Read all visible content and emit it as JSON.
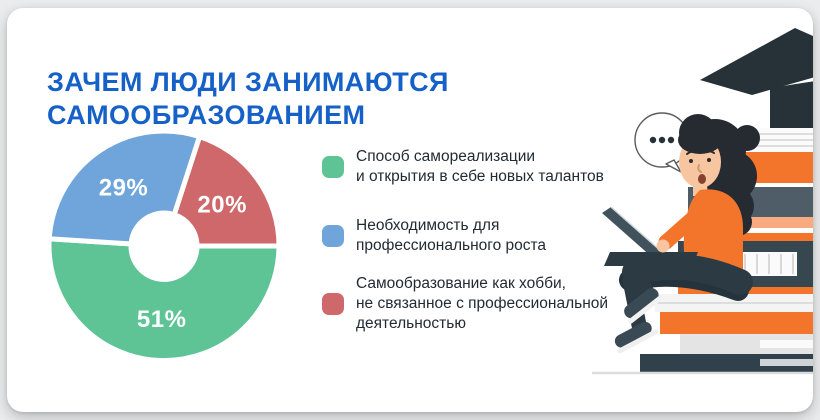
{
  "page": {
    "background": "#ebeced",
    "card_background": "#ffffff"
  },
  "title": {
    "text": "ЗАЧЕМ ЛЮДИ ЗАНИМАЮТСЯ\nСАМООБРАЗОВАНИЕМ",
    "color": "#1561c8"
  },
  "chart_data": {
    "type": "pie",
    "title": "Зачем люди занимаются самообразованием",
    "donut": true,
    "hole_ratio": 0.29,
    "start_angle_cw_from_top_deg": 18,
    "gap_color": "#ffffff",
    "value_label_color": "#ffffff",
    "slices": [
      {
        "label": "Самообразование как хобби, не связанное с профессиональной деятельностью",
        "value": 20,
        "text": "20%",
        "color": "#ce686b"
      },
      {
        "label": "Способ самореализации и открытия в себе новых талантов",
        "value": 51,
        "text": "51%",
        "color": "#5ec495"
      },
      {
        "label": "Необходимость для профессионального роста",
        "value": 29,
        "text": "29%",
        "color": "#6fa5da"
      }
    ],
    "legend_position": "right",
    "grid": false
  },
  "legend": {
    "items": [
      {
        "label": "Способ самореализации\nи открытия в себе новых талантов",
        "color": "#5ec495"
      },
      {
        "label": "Необходимость для\nпрофессионального роста",
        "color": "#6fa5da"
      },
      {
        "label": "Самообразование как хобби,\nне связанное с профессиональной\nдеятельностью",
        "color": "#ce686b"
      }
    ]
  },
  "illustration": {
    "icons": {
      "speech_bubble": "ellipsis-bubble",
      "graduation_cap": "mortarboard",
      "books": "book-stack",
      "person": "woman-with-laptop"
    },
    "colors": {
      "orange": "#f2752b",
      "salmon": "#f9ab80",
      "dark_navy": "#263238",
      "slate": "#4e5d68",
      "skin": "#f7c5a0",
      "hair": "#262a31"
    }
  }
}
